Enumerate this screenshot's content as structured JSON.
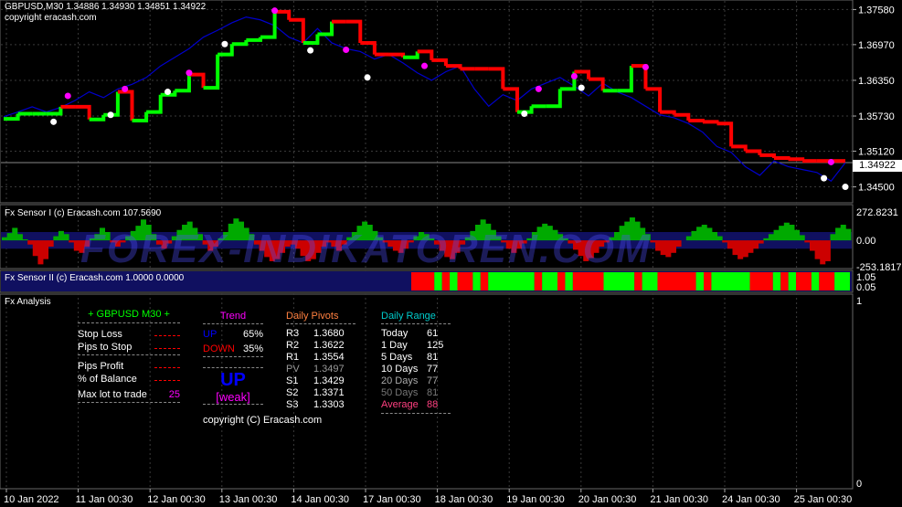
{
  "main_panel": {
    "title": "GBPUSD,M30  1.34886 1.34930 1.34851 1.34922",
    "copyright": "copyright eracash.com",
    "price_label": "1.34922"
  },
  "sensor1": {
    "title": "Fx Sensor I (c) Eracash.com 107.5690"
  },
  "sensor2": {
    "title": "Fx Sensor II (c) Eracash.com 1.0000 0.0000"
  },
  "watermark": "FOREX-INDIKATOREN.COM",
  "analysis": {
    "title": "Fx Analysis",
    "header": "+ GBPUSD  M30  +",
    "rows": [
      {
        "label": "Stop Loss",
        "value": ""
      },
      {
        "label": "Pips to Stop",
        "value": ""
      },
      {
        "label": "Pips Profit",
        "value": ""
      },
      {
        "label": "% of Balance",
        "value": ""
      },
      {
        "label": "Max lot to trade",
        "value": "25"
      }
    ],
    "trend": {
      "title": "Trend",
      "up_label": "UP",
      "up_value": "65%",
      "down_label": "DOWN",
      "down_value": "35%",
      "signal": "UP",
      "strength": "[weak]"
    },
    "pivots": {
      "title": "Daily Pivots",
      "rows": [
        {
          "label": "R3",
          "value": "1.3680"
        },
        {
          "label": "R2",
          "value": "1.3622"
        },
        {
          "label": "R1",
          "value": "1.3554"
        },
        {
          "label": "PV",
          "value": "1.3497"
        },
        {
          "label": "S1",
          "value": "1.3429"
        },
        {
          "label": "S2",
          "value": "1.3371"
        },
        {
          "label": "S3",
          "value": "1.3303"
        }
      ]
    },
    "range": {
      "title": "Daily Range",
      "rows": [
        {
          "label": "Today",
          "value": "61"
        },
        {
          "label": "1 Day",
          "value": "125"
        },
        {
          "label": "5 Days",
          "value": "81"
        },
        {
          "label": "10 Days",
          "value": "77"
        },
        {
          "label": "20 Days",
          "value": "77"
        },
        {
          "label": "50 Days",
          "value": "81"
        },
        {
          "label": "Average",
          "value": "88"
        }
      ]
    },
    "copyright": "copyright (C) Eracash.com"
  },
  "chart_data": [
    {
      "type": "line",
      "title": "GBPUSD,M30",
      "x_ticks": [
        "10 Jan 2022",
        "11 Jan 00:30",
        "12 Jan 00:30",
        "13 Jan 00:30",
        "14 Jan 00:30",
        "17 Jan 00:30",
        "18 Jan 00:30",
        "19 Jan 00:30",
        "20 Jan 00:30",
        "21 Jan 00:30",
        "24 Jan 00:30",
        "25 Jan 00:30"
      ],
      "y_ticks": [
        "1.37580",
        "1.36970",
        "1.36350",
        "1.35730",
        "1.35120",
        "1.34500"
      ],
      "ylim": [
        1.3435,
        1.3765
      ],
      "series": [
        {
          "values": [
            1.3572,
            1.358,
            1.3589,
            1.358,
            1.3588,
            1.36,
            1.3615,
            1.3605,
            1.362,
            1.3628,
            1.364,
            1.366,
            1.3675,
            1.369,
            1.371,
            1.3722,
            1.3735,
            1.3745,
            1.374,
            1.373,
            1.371,
            1.37,
            1.3725,
            1.37,
            1.369,
            1.3685,
            1.3672,
            1.368,
            1.3665,
            1.3648,
            1.3635,
            1.365,
            1.366,
            1.362,
            1.359,
            1.361,
            1.36,
            1.362,
            1.363,
            1.364,
            1.3625,
            1.3608,
            1.363,
            1.3615,
            1.3605,
            1.359,
            1.3575,
            1.357,
            1.356,
            1.3545,
            1.352,
            1.351,
            1.3485,
            1.347,
            1.3495,
            1.3485,
            1.348,
            1.3475,
            1.346,
            1.3492
          ]
        }
      ],
      "trail_points": [
        {
          "x": 0,
          "y": 1.3568,
          "color": "green"
        },
        {
          "x": 1,
          "y": 1.3577,
          "color": "green"
        },
        {
          "x": 2,
          "y": 1.3577,
          "color": "green"
        },
        {
          "x": 3,
          "y": 1.3577,
          "color": "green"
        },
        {
          "x": 4,
          "y": 1.3589,
          "color": "red"
        },
        {
          "x": 5,
          "y": 1.3589,
          "color": "red"
        },
        {
          "x": 6,
          "y": 1.3567,
          "color": "green"
        },
        {
          "x": 7,
          "y": 1.3575,
          "color": "green"
        },
        {
          "x": 8,
          "y": 1.3615,
          "color": "red"
        },
        {
          "x": 9,
          "y": 1.3565,
          "color": "green"
        },
        {
          "x": 10,
          "y": 1.358,
          "color": "green"
        },
        {
          "x": 11,
          "y": 1.361,
          "color": "green"
        },
        {
          "x": 12,
          "y": 1.3617,
          "color": "green"
        },
        {
          "x": 13,
          "y": 1.3645,
          "color": "red"
        },
        {
          "x": 14,
          "y": 1.3622,
          "color": "green"
        },
        {
          "x": 15,
          "y": 1.368,
          "color": "green"
        },
        {
          "x": 16,
          "y": 1.3698,
          "color": "green"
        },
        {
          "x": 17,
          "y": 1.3705,
          "color": "green"
        },
        {
          "x": 18,
          "y": 1.371,
          "color": "green"
        },
        {
          "x": 19,
          "y": 1.3754,
          "color": "red"
        },
        {
          "x": 20,
          "y": 1.374,
          "color": "red"
        },
        {
          "x": 21,
          "y": 1.37,
          "color": "green"
        },
        {
          "x": 22,
          "y": 1.3715,
          "color": "green"
        },
        {
          "x": 23,
          "y": 1.3737,
          "color": "red"
        },
        {
          "x": 24,
          "y": 1.3737,
          "color": "red"
        },
        {
          "x": 25,
          "y": 1.37,
          "color": "red"
        },
        {
          "x": 26,
          "y": 1.368,
          "color": "red"
        },
        {
          "x": 27,
          "y": 1.368,
          "color": "red"
        },
        {
          "x": 28,
          "y": 1.3675,
          "color": "green"
        },
        {
          "x": 29,
          "y": 1.3685,
          "color": "red"
        },
        {
          "x": 30,
          "y": 1.367,
          "color": "red"
        },
        {
          "x": 31,
          "y": 1.366,
          "color": "red"
        },
        {
          "x": 32,
          "y": 1.3655,
          "color": "red"
        },
        {
          "x": 33,
          "y": 1.3655,
          "color": "red"
        },
        {
          "x": 34,
          "y": 1.3655,
          "color": "red"
        },
        {
          "x": 35,
          "y": 1.362,
          "color": "red"
        },
        {
          "x": 36,
          "y": 1.358,
          "color": "green"
        },
        {
          "x": 37,
          "y": 1.359,
          "color": "green"
        },
        {
          "x": 38,
          "y": 1.359,
          "color": "green"
        },
        {
          "x": 39,
          "y": 1.362,
          "color": "green"
        },
        {
          "x": 40,
          "y": 1.365,
          "color": "red"
        },
        {
          "x": 41,
          "y": 1.3637,
          "color": "red"
        },
        {
          "x": 42,
          "y": 1.3617,
          "color": "green"
        },
        {
          "x": 43,
          "y": 1.3617,
          "color": "green"
        },
        {
          "x": 44,
          "y": 1.366,
          "color": "red"
        },
        {
          "x": 45,
          "y": 1.362,
          "color": "red"
        },
        {
          "x": 46,
          "y": 1.358,
          "color": "red"
        },
        {
          "x": 47,
          "y": 1.3575,
          "color": "red"
        },
        {
          "x": 48,
          "y": 1.3565,
          "color": "red"
        },
        {
          "x": 49,
          "y": 1.3563,
          "color": "red"
        },
        {
          "x": 50,
          "y": 1.356,
          "color": "red"
        },
        {
          "x": 51,
          "y": 1.352,
          "color": "red"
        },
        {
          "x": 52,
          "y": 1.3512,
          "color": "red"
        },
        {
          "x": 53,
          "y": 1.3505,
          "color": "red"
        },
        {
          "x": 54,
          "y": 1.35,
          "color": "red"
        },
        {
          "x": 55,
          "y": 1.3498,
          "color": "red"
        },
        {
          "x": 56,
          "y": 1.3495,
          "color": "red"
        },
        {
          "x": 57,
          "y": 1.3495,
          "color": "red"
        },
        {
          "x": 58,
          "y": 1.3495,
          "color": "red"
        },
        {
          "x": 59,
          "y": 1.3495,
          "color": "red"
        }
      ],
      "markers": [
        {
          "x": 3.5,
          "y": 1.3563,
          "type": "white"
        },
        {
          "x": 7.5,
          "y": 1.3575,
          "type": "white"
        },
        {
          "x": 11.5,
          "y": 1.3615,
          "type": "white"
        },
        {
          "x": 15.5,
          "y": 1.3698,
          "type": "white"
        },
        {
          "x": 21.5,
          "y": 1.3687,
          "type": "white"
        },
        {
          "x": 25.5,
          "y": 1.364,
          "type": "white"
        },
        {
          "x": 36.5,
          "y": 1.3577,
          "type": "white"
        },
        {
          "x": 40.5,
          "y": 1.3622,
          "type": "white"
        },
        {
          "x": 57.5,
          "y": 1.3465,
          "type": "white"
        },
        {
          "x": 59.0,
          "y": 1.345,
          "type": "white"
        },
        {
          "x": 4.5,
          "y": 1.3608,
          "type": "magenta"
        },
        {
          "x": 8.5,
          "y": 1.362,
          "type": "magenta"
        },
        {
          "x": 13.0,
          "y": 1.3648,
          "type": "magenta"
        },
        {
          "x": 19.0,
          "y": 1.3756,
          "type": "magenta"
        },
        {
          "x": 24.0,
          "y": 1.3688,
          "type": "magenta"
        },
        {
          "x": 29.5,
          "y": 1.366,
          "type": "magenta"
        },
        {
          "x": 37.5,
          "y": 1.362,
          "type": "magenta"
        },
        {
          "x": 40.0,
          "y": 1.3642,
          "type": "magenta"
        },
        {
          "x": 45.0,
          "y": 1.3658,
          "type": "magenta"
        },
        {
          "x": 58.0,
          "y": 1.3493,
          "type": "magenta"
        }
      ]
    },
    {
      "type": "area",
      "title": "Fx Sensor I (c) Eracash.com 107.5690",
      "y_ticks": [
        "272.8231",
        "0.00",
        "-253.1817"
      ],
      "ylim": [
        -253.1817,
        272.8231
      ],
      "values": [
        30,
        70,
        120,
        60,
        10,
        -40,
        -150,
        -230,
        -180,
        -60,
        40,
        90,
        60,
        -20,
        -100,
        -120,
        -60,
        20,
        60,
        120,
        80,
        -20,
        -60,
        -20,
        40,
        90,
        140,
        200,
        150,
        60,
        -40,
        -80,
        -30,
        40,
        100,
        150,
        180,
        120,
        60,
        -40,
        -100,
        -60,
        20,
        80,
        160,
        210,
        180,
        120,
        60,
        -40,
        -100,
        -160,
        -200,
        -180,
        -120,
        -60,
        -40,
        -80,
        -150,
        -200,
        -180,
        -120,
        -60,
        -20,
        -60,
        -100,
        -40,
        30,
        80,
        140,
        180,
        150,
        90,
        30,
        -20,
        -60,
        -100,
        -120,
        -80,
        -20,
        40,
        80,
        60,
        20,
        -40,
        -100,
        -160,
        -180,
        -120,
        -40,
        30,
        90,
        150,
        200,
        160,
        100,
        40,
        -20,
        -80,
        -120,
        -80,
        -30,
        20,
        80,
        130,
        160,
        140,
        100,
        60,
        20,
        -30,
        -90,
        -150,
        -200,
        -170,
        -120,
        -60,
        -20,
        30,
        80,
        140,
        180,
        220,
        180,
        120,
        60,
        -20,
        -100,
        -140,
        -160,
        -120,
        -60,
        0,
        40,
        90,
        130,
        150,
        120,
        80,
        40,
        -20,
        -80,
        -140,
        -180,
        -160,
        -120,
        -80,
        -30,
        20,
        60,
        100,
        140,
        170,
        150,
        100,
        50,
        -20,
        -100,
        -180,
        -230,
        -200,
        60,
        120,
        150,
        110
      ]
    },
    {
      "type": "heatmap",
      "title": "Fx Sensor II (c) Eracash.com 1.0000 0.0000",
      "y_ticks": [
        "1.05",
        "0.05"
      ],
      "segments": [
        {
          "w": 3,
          "c": "#ff0000"
        },
        {
          "w": 1,
          "c": "#00ff00"
        },
        {
          "w": 1,
          "c": "#ff0000"
        },
        {
          "w": 1,
          "c": "#00ff00"
        },
        {
          "w": 2,
          "c": "#ff0000"
        },
        {
          "w": 1,
          "c": "#00ff00"
        },
        {
          "w": 1,
          "c": "#ff0000"
        },
        {
          "w": 6,
          "c": "#00ff00"
        },
        {
          "w": 1,
          "c": "#ff0000"
        },
        {
          "w": 2,
          "c": "#00ff00"
        },
        {
          "w": 1,
          "c": "#ff0000"
        },
        {
          "w": 1,
          "c": "#00ff00"
        },
        {
          "w": 4,
          "c": "#ff0000"
        },
        {
          "w": 4,
          "c": "#00ff00"
        },
        {
          "w": 1,
          "c": "#ff0000"
        },
        {
          "w": 2,
          "c": "#00ff00"
        },
        {
          "w": 5,
          "c": "#ff0000"
        },
        {
          "w": 1,
          "c": "#00ff00"
        },
        {
          "w": 1,
          "c": "#ff0000"
        },
        {
          "w": 5,
          "c": "#00ff00"
        },
        {
          "w": 3,
          "c": "#ff0000"
        },
        {
          "w": 1,
          "c": "#00ff00"
        },
        {
          "w": 1,
          "c": "#ff0000"
        },
        {
          "w": 1,
          "c": "#00ff00"
        },
        {
          "w": 2,
          "c": "#ff0000"
        },
        {
          "w": 1,
          "c": "#00ff00"
        },
        {
          "w": 2,
          "c": "#ff0000"
        },
        {
          "w": 2,
          "c": "#00ff00"
        }
      ]
    }
  ],
  "analysis_panel": {
    "y_ticks": [
      "1",
      "0"
    ]
  },
  "colors": {
    "price_line": "#0000cc",
    "up": "#00ff00",
    "down": "#ff0000",
    "pivot_text": "#999999",
    "trend_title": "#ff00ff",
    "pivot_title": "#ff8040",
    "range_title": "#00cccc",
    "bar_up": "#00aa00",
    "bar_down": "#cc0000"
  }
}
